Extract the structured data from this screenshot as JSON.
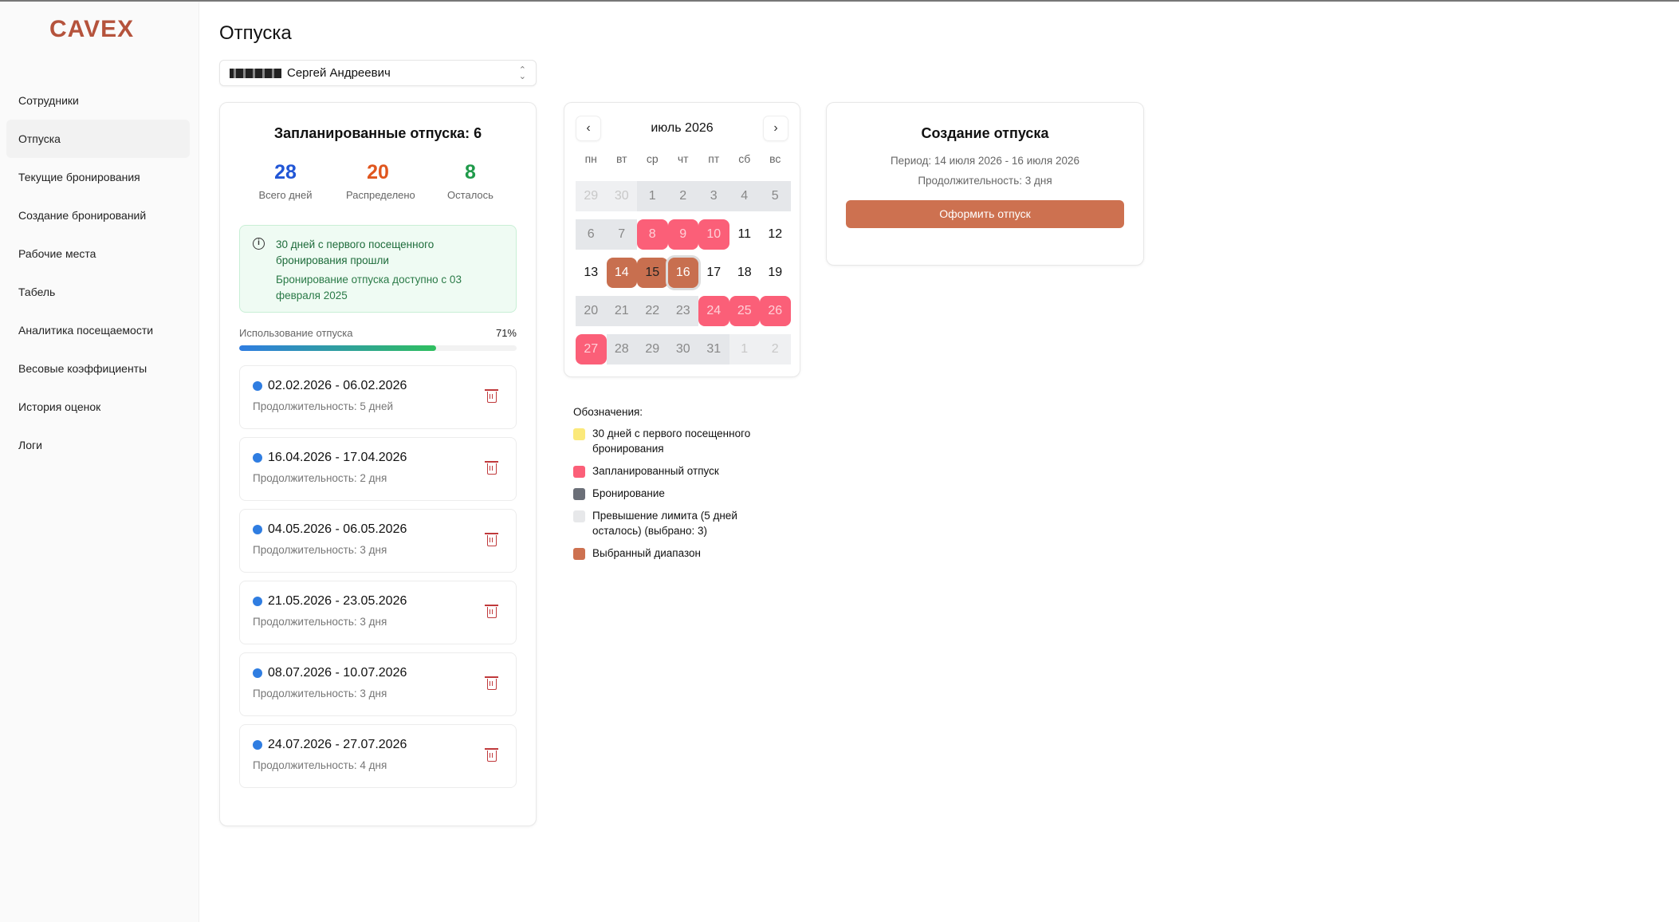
{
  "app": {
    "logo": "CAVEX"
  },
  "sidebar": {
    "items": [
      {
        "label": "Сотрудники"
      },
      {
        "label": "Отпуска",
        "active": true
      },
      {
        "label": "Текущие бронирования"
      },
      {
        "label": "Создание бронирований"
      },
      {
        "label": "Рабочие места"
      },
      {
        "label": "Табель"
      },
      {
        "label": "Аналитика посещаемости"
      },
      {
        "label": "Весовые коэффициенты"
      },
      {
        "label": "История оценок"
      },
      {
        "label": "Логи"
      }
    ]
  },
  "page": {
    "title": "Отпуска"
  },
  "employee_select": {
    "value": "Сергей Андреевич"
  },
  "planned": {
    "title": "Запланированные отпуска: 6",
    "stats": [
      {
        "value": "28",
        "label": "Всего дней",
        "color": "#2156d6"
      },
      {
        "value": "20",
        "label": "Распределено",
        "color": "#e0561e"
      },
      {
        "value": "8",
        "label": "Осталось",
        "color": "#1f9a4a"
      }
    ],
    "info": {
      "title": "30 дней с первого посещенного бронирования прошли",
      "text": "Бронирование отпуска доступно с 03 февраля 2025"
    },
    "usage": {
      "label": "Использование отпуска",
      "percent_label": "71%",
      "percent": 71
    },
    "items": [
      {
        "dates": "02.02.2026 - 06.02.2026",
        "duration": "Продолжительность: 5 дней"
      },
      {
        "dates": "16.04.2026 - 17.04.2026",
        "duration": "Продолжительность: 2 дня"
      },
      {
        "dates": "04.05.2026 - 06.05.2026",
        "duration": "Продолжительность: 3 дня"
      },
      {
        "dates": "21.05.2026 - 23.05.2026",
        "duration": "Продолжительность: 3 дня"
      },
      {
        "dates": "08.07.2026 - 10.07.2026",
        "duration": "Продолжительность: 3 дня"
      },
      {
        "dates": "24.07.2026 - 27.07.2026",
        "duration": "Продолжительность: 4 дня"
      }
    ]
  },
  "calendar": {
    "month": "июль 2026",
    "weekdays": [
      "пн",
      "вт",
      "ср",
      "чт",
      "пт",
      "сб",
      "вс"
    ],
    "days": [
      {
        "d": "29",
        "s": "out"
      },
      {
        "d": "30",
        "s": "out"
      },
      {
        "d": "1",
        "s": "limit"
      },
      {
        "d": "2",
        "s": "limit"
      },
      {
        "d": "3",
        "s": "limit"
      },
      {
        "d": "4",
        "s": "limit"
      },
      {
        "d": "5",
        "s": "limit"
      },
      {
        "d": "6",
        "s": "limit"
      },
      {
        "d": "7",
        "s": "limit"
      },
      {
        "d": "8",
        "s": "planned"
      },
      {
        "d": "9",
        "s": "planned"
      },
      {
        "d": "10",
        "s": "planned"
      },
      {
        "d": "11",
        "s": ""
      },
      {
        "d": "12",
        "s": ""
      },
      {
        "d": "13",
        "s": ""
      },
      {
        "d": "14",
        "s": "selected"
      },
      {
        "d": "15",
        "s": "selected mid"
      },
      {
        "d": "16",
        "s": "selected end"
      },
      {
        "d": "17",
        "s": ""
      },
      {
        "d": "18",
        "s": ""
      },
      {
        "d": "19",
        "s": ""
      },
      {
        "d": "20",
        "s": "limit"
      },
      {
        "d": "21",
        "s": "limit"
      },
      {
        "d": "22",
        "s": "limit"
      },
      {
        "d": "23",
        "s": "limit"
      },
      {
        "d": "24",
        "s": "planned"
      },
      {
        "d": "25",
        "s": "planned"
      },
      {
        "d": "26",
        "s": "planned"
      },
      {
        "d": "27",
        "s": "planned"
      },
      {
        "d": "28",
        "s": "limit"
      },
      {
        "d": "29",
        "s": "limit"
      },
      {
        "d": "30",
        "s": "limit"
      },
      {
        "d": "31",
        "s": "limit"
      },
      {
        "d": "1",
        "s": "out"
      },
      {
        "d": "2",
        "s": "out"
      }
    ]
  },
  "legend": {
    "title": "Обозначения:",
    "items": [
      {
        "label": "30 дней с первого посещенного бронирования",
        "color": "#fbe97a"
      },
      {
        "label": "Запланированный отпуск",
        "color": "#fb5f78"
      },
      {
        "label": "Бронирование",
        "color": "#6b6f78"
      },
      {
        "label": "Превышение лимита (5 дней осталось) (выбрано: 3)",
        "color": "#e7e8ea"
      },
      {
        "label": "Выбранный диапазон",
        "color": "#cd7150"
      }
    ]
  },
  "create": {
    "title": "Создание отпуска",
    "period": "Период: 14 июля 2026 - 16 июля 2026",
    "duration": "Продолжительность: 3 дня",
    "button": "Оформить отпуск"
  }
}
